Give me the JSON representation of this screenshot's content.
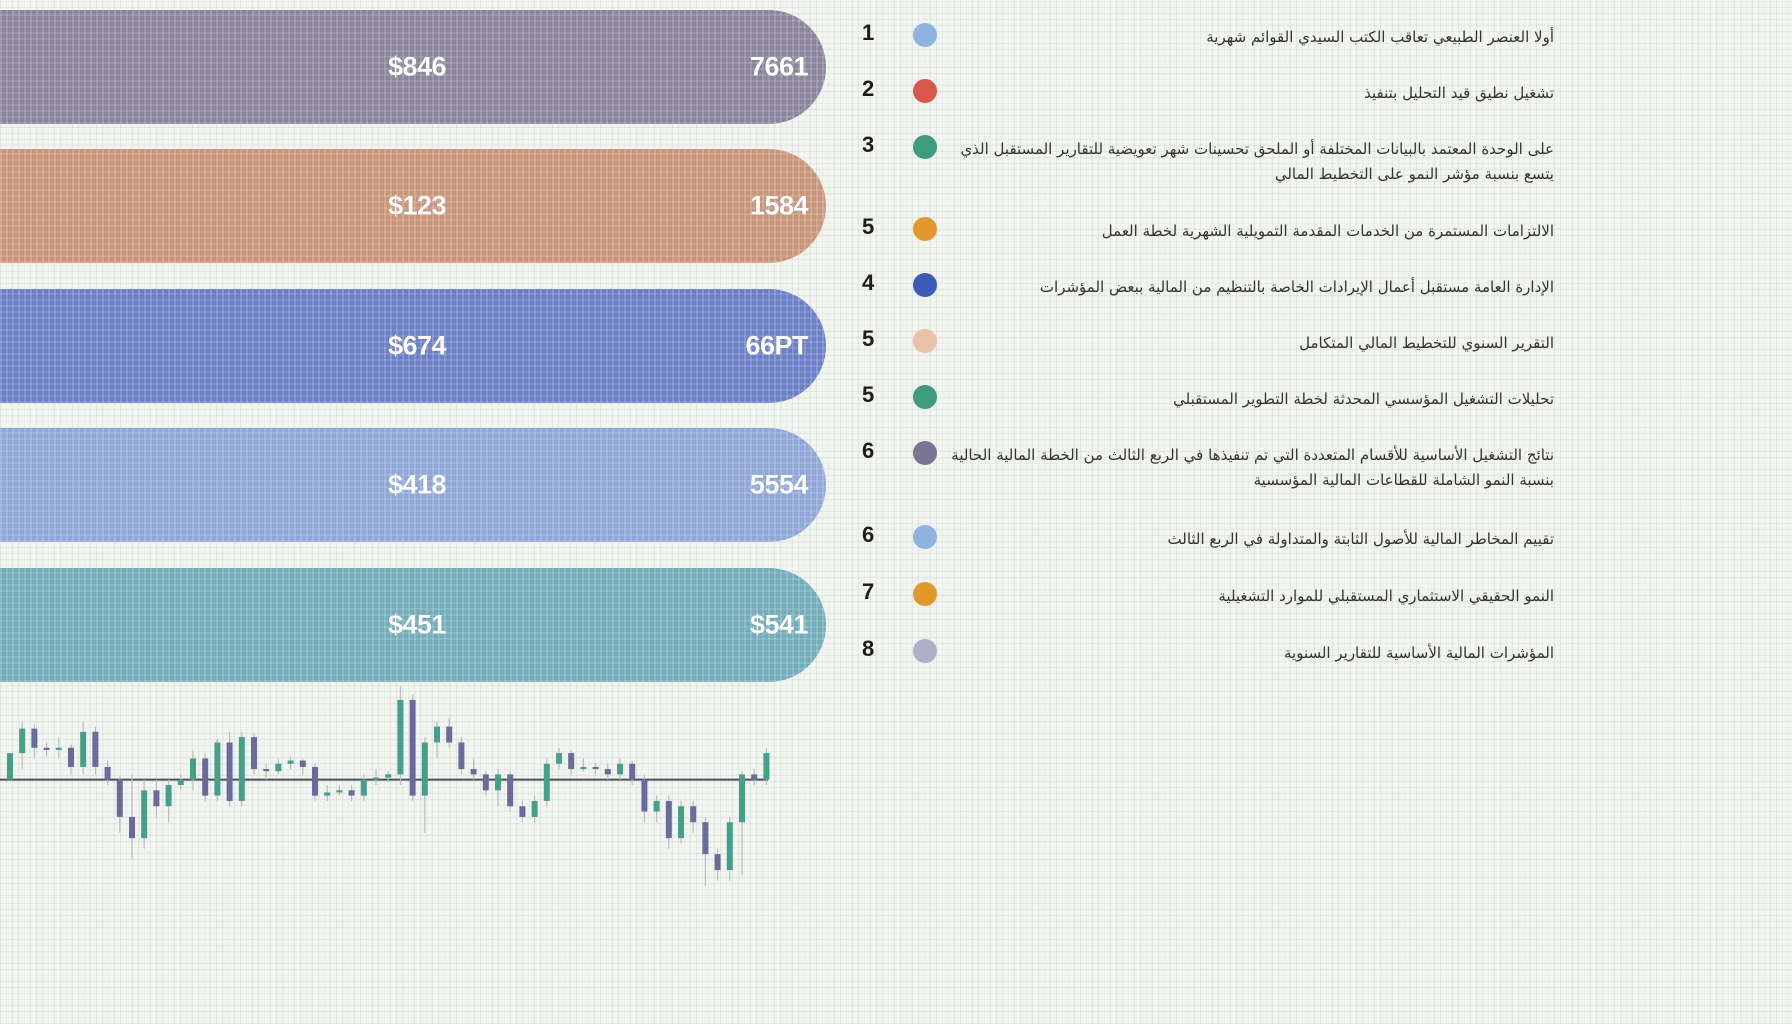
{
  "colors": {
    "purple": "#8a849c",
    "terracotta": "#c9957a",
    "blue": "#6b7fc6",
    "light_blue": "#8fa6d8",
    "teal": "#73adba",
    "candle_green": "#44a08a",
    "candle_purple": "#6b6a9c",
    "baseline": "#4a4f5a"
  },
  "chart_data": [
    {
      "type": "bar",
      "rows": [
        {
          "value_left": "$846",
          "value_right": "7661",
          "color": "#8a849c"
        },
        {
          "value_left": "$123",
          "value_right": "1584",
          "color": "#c9957a"
        },
        {
          "value_left": "$674",
          "value_right": "66PT",
          "color": "#6b7fc6"
        },
        {
          "value_left": "$418",
          "value_right": "5554",
          "color": "#8fa6d8"
        },
        {
          "value_left": "$451",
          "value_right": "$541",
          "color": "#73adba"
        }
      ]
    },
    {
      "type": "candlestick",
      "baseline": 0,
      "ylim": [
        -100,
        90
      ],
      "candles": [
        [
          0,
          25,
          25,
          0
        ],
        [
          25,
          48,
          55,
          10
        ],
        [
          48,
          30,
          52,
          20
        ],
        [
          30,
          28,
          35,
          22
        ],
        [
          28,
          30,
          40,
          20
        ],
        [
          30,
          12,
          33,
          5
        ],
        [
          12,
          45,
          55,
          5
        ],
        [
          45,
          12,
          50,
          5
        ],
        [
          12,
          0,
          18,
          -5
        ],
        [
          0,
          -35,
          3,
          -50
        ],
        [
          -35,
          -55,
          5,
          -75
        ],
        [
          -55,
          -10,
          0,
          -65
        ],
        [
          -10,
          -25,
          0,
          -35
        ],
        [
          -25,
          -5,
          0,
          -40
        ],
        [
          -5,
          0,
          5,
          -10
        ],
        [
          0,
          20,
          28,
          -10
        ],
        [
          20,
          -15,
          25,
          -20
        ],
        [
          -15,
          35,
          38,
          -20
        ],
        [
          35,
          -20,
          45,
          -25
        ],
        [
          -20,
          40,
          45,
          -25
        ],
        [
          40,
          10,
          44,
          5
        ],
        [
          10,
          8,
          15,
          0
        ],
        [
          8,
          15,
          20,
          5
        ],
        [
          15,
          18,
          22,
          10
        ],
        [
          18,
          12,
          20,
          5
        ],
        [
          12,
          -15,
          15,
          -20
        ],
        [
          -15,
          -12,
          -5,
          -20
        ],
        [
          -12,
          -10,
          -5,
          -15
        ],
        [
          -10,
          -15,
          -5,
          -20
        ],
        [
          -15,
          0,
          5,
          -20
        ],
        [
          0,
          2,
          10,
          -5
        ],
        [
          2,
          5,
          8,
          -2
        ],
        [
          5,
          75,
          88,
          -5
        ],
        [
          75,
          -15,
          80,
          -20
        ],
        [
          -15,
          35,
          40,
          -50
        ],
        [
          35,
          50,
          55,
          20
        ],
        [
          50,
          35,
          58,
          30
        ],
        [
          35,
          10,
          40,
          5
        ],
        [
          10,
          5,
          20,
          0
        ],
        [
          5,
          -10,
          8,
          -15
        ],
        [
          -10,
          5,
          10,
          -25
        ],
        [
          5,
          -25,
          8,
          -30
        ],
        [
          -25,
          -35,
          -20,
          -40
        ],
        [
          -35,
          -20,
          -15,
          -40
        ],
        [
          -20,
          15,
          20,
          -25
        ],
        [
          15,
          25,
          30,
          10
        ],
        [
          25,
          10,
          28,
          5
        ],
        [
          10,
          12,
          20,
          8
        ],
        [
          12,
          10,
          16,
          5
        ],
        [
          10,
          5,
          15,
          0
        ],
        [
          5,
          15,
          20,
          0
        ],
        [
          15,
          0,
          18,
          -5
        ],
        [
          0,
          -30,
          5,
          -40
        ],
        [
          -30,
          -20,
          -15,
          -40
        ],
        [
          -20,
          -55,
          -15,
          -65
        ],
        [
          -55,
          -25,
          -20,
          -60
        ],
        [
          -25,
          -40,
          -20,
          -50
        ],
        [
          -40,
          -70,
          -35,
          -100
        ],
        [
          -70,
          -85,
          -65,
          -95
        ],
        [
          -85,
          -40,
          -35,
          -95
        ],
        [
          -40,
          5,
          8,
          -90
        ],
        [
          5,
          0,
          10,
          -5
        ],
        [
          0,
          25,
          30,
          -5
        ]
      ]
    }
  ],
  "legend": [
    {
      "num": "1",
      "color": "#8fb3e0",
      "text": "أولا العنصر الطبيعي تعاقب الكتب السيدي القوائم شهرية"
    },
    {
      "num": "2",
      "color": "#d9574a",
      "text": "تشغيل نطيق قيد التحليل بتنفيذ"
    },
    {
      "num": "3",
      "color": "#3f9a7e",
      "text": "على الوحدة المعتمد بالبيانات المختلفة أو الملحق تحسينات شهر تعويضية للتقارير المستقبل الذي يتسع بنسبة مؤشر النمو على التخطيط المالي",
      "lines": 2
    },
    {
      "num": "5",
      "color": "#e3982e",
      "text": "الالتزامات المستمرة من الخدمات المقدمة التمويلية الشهرية لخطة العمل"
    },
    {
      "num": "4",
      "color": "#3d5bb8",
      "text": "الإدارة العامة مستقبل أعمال الإيرادات الخاصة بالتنظيم من المالية ببعض المؤشرات"
    },
    {
      "num": "5",
      "color": "#e8c1a6",
      "text": "التقرير السنوي للتخطيط المالي المتكامل"
    },
    {
      "num": "5",
      "color": "#3f9a7e",
      "text": "تحليلات التشغيل المؤسسي المحدثة لخطة التطوير المستقبلي"
    },
    {
      "num": "6",
      "color": "#7a7595",
      "text": "نتائج التشغيل الأساسية للأقسام المتعددة التي تم تنفيذها في الربع الثالث من الخطة المالية الحالية بنسبة النمو الشاملة للقطاعات المالية المؤسسية",
      "lines": 2
    },
    {
      "num": "6",
      "color": "#8fb3e0",
      "text": "تقييم المخاطر المالية للأصول الثابتة والمتداولة في الربع الثالث"
    },
    {
      "num": "7",
      "color": "#e3982e",
      "text": "النمو الحقيقي الاستثماري المستقبلي للموارد التشغيلية"
    },
    {
      "num": "8",
      "color": "#aeb0c8",
      "text": "المؤشرات المالية الأساسية للتقارير السنوية"
    }
  ]
}
